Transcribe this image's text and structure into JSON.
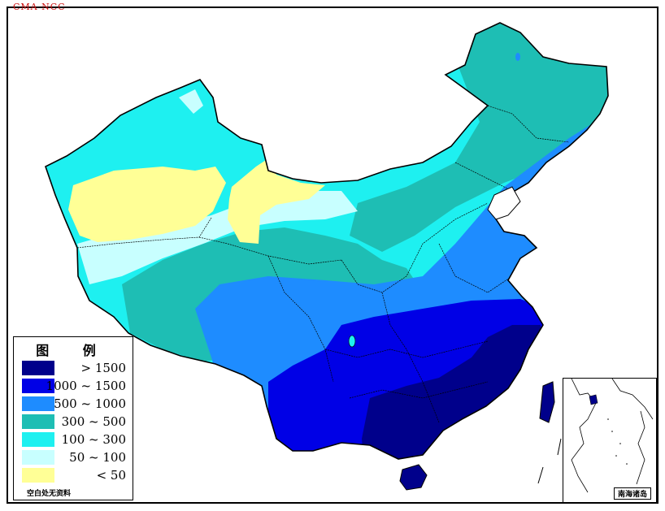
{
  "credit": "CMA NCC",
  "legend": {
    "title": "图 例",
    "note": "空白处无资料",
    "classes": [
      {
        "label": "> 1500",
        "color": "#00008b"
      },
      {
        "label": "1000 ~ 1500",
        "color": "#0000e6"
      },
      {
        "label": "500 ~ 1000",
        "color": "#1e8cff"
      },
      {
        "label": "300 ~ 500",
        "color": "#1ebeb4"
      },
      {
        "label": "100 ~ 300",
        "color": "#1ef0f0"
      },
      {
        "label": "50 ~ 100",
        "color": "#c8ffff"
      },
      {
        "label": "< 50",
        "color": "#ffff96"
      }
    ]
  },
  "inset": {
    "label": "南海诸岛"
  }
}
